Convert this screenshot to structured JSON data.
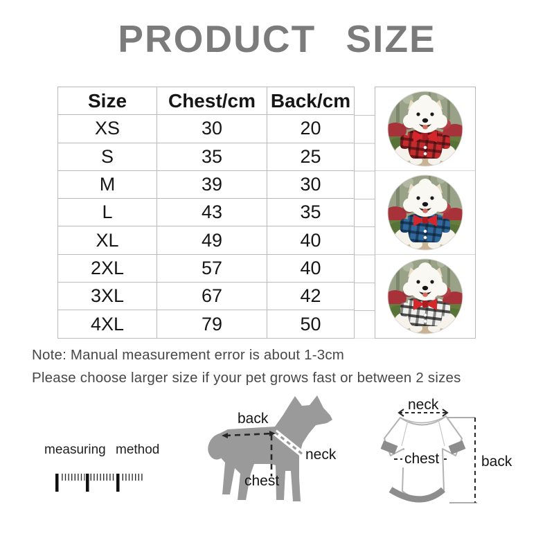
{
  "title": "PRODUCT SIZE",
  "colors": {
    "title_gray": "#7b7b7b",
    "table_border": "#b9b9b9",
    "text": "#161616",
    "note_text": "#474747",
    "dog_silhouette": "#9a9a9a",
    "shirt_outline": "#b2b2b2",
    "shirt_trim": "#8d8d8d",
    "bow_red": "#d5262b"
  },
  "size_table": {
    "headers": [
      "Size",
      "Chest/cm",
      "Back/cm"
    ],
    "rows": [
      {
        "size": "XS",
        "chest": "30",
        "back": "20"
      },
      {
        "size": "S",
        "chest": "35",
        "back": "25"
      },
      {
        "size": "M",
        "chest": "39",
        "back": "30"
      },
      {
        "size": "L",
        "chest": "43",
        "back": "35"
      },
      {
        "size": "XL",
        "chest": "49",
        "back": "40"
      },
      {
        "size": "2XL",
        "chest": "57",
        "back": "40"
      },
      {
        "size": "3XL",
        "chest": "67",
        "back": "42"
      },
      {
        "size": "4XL",
        "chest": "79",
        "back": "50"
      }
    ]
  },
  "chart_data": {
    "type": "table",
    "title": "PRODUCT SIZE",
    "columns": [
      "Size",
      "Chest/cm",
      "Back/cm"
    ],
    "rows": [
      [
        "XS",
        30,
        20
      ],
      [
        "S",
        35,
        25
      ],
      [
        "M",
        39,
        30
      ],
      [
        "L",
        43,
        35
      ],
      [
        "XL",
        49,
        40
      ],
      [
        "2XL",
        57,
        40
      ],
      [
        "3XL",
        67,
        42
      ],
      [
        "4XL",
        79,
        50
      ]
    ]
  },
  "notes": [
    "Note: Manual measurement error is about 1-3cm",
    "Please choose larger size if your pet grows fast or between 2 sizes"
  ],
  "measuring": {
    "label": "measuring method"
  },
  "dog_diagram": {
    "back_label": "back",
    "neck_label": "neck",
    "chest_label": "chest"
  },
  "shirt_diagram": {
    "neck_label": "neck",
    "chest_label": "chest",
    "back_label": "back"
  },
  "photos": [
    {
      "name": "dog-in-red-plaid-shirt",
      "shirt_base": "#c32b2c",
      "shirt_stripe": "#591014",
      "shirt_cross": "#1e0d0f"
    },
    {
      "name": "dog-in-blue-plaid-shirt",
      "shirt_base": "#30689c",
      "shirt_stripe": "#10304c",
      "shirt_cross": "#0c1a27"
    },
    {
      "name": "dog-in-black-white-plaid-shirt",
      "shirt_base": "#efefec",
      "shirt_stripe": "#262626",
      "shirt_cross": "#161616"
    }
  ]
}
